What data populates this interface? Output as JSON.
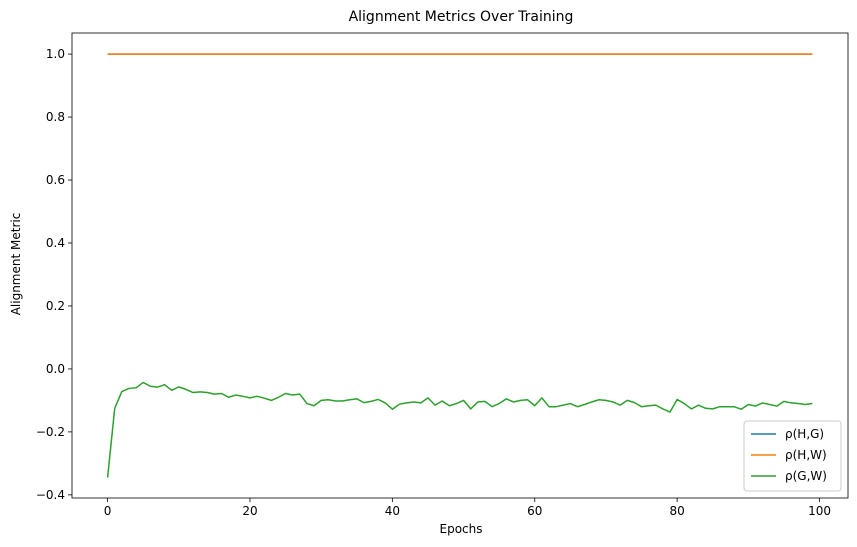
{
  "chart_data": {
    "type": "line",
    "title": "Alignment Metrics Over Training",
    "xlabel": "Epochs",
    "ylabel": "Alignment Metric",
    "xlim": [
      -5,
      104
    ],
    "ylim": [
      -0.41,
      1.067
    ],
    "xticks": [
      0,
      20,
      40,
      60,
      80,
      100
    ],
    "yticks": [
      -0.4,
      -0.2,
      0.0,
      0.2,
      0.4,
      0.6,
      0.8,
      1.0
    ],
    "ytick_labels": [
      "−0.4",
      "−0.2",
      "0.0",
      "0.2",
      "0.4",
      "0.6",
      "0.8",
      "1.0"
    ],
    "grid": false,
    "legend_position": "lower-right",
    "series": [
      {
        "name": "ρ(H,G)",
        "color": "#1f77b4",
        "x": [
          0,
          99
        ],
        "y": [
          1.0,
          1.0
        ]
      },
      {
        "name": "ρ(H,W)",
        "color": "#ff7f0e",
        "x": [
          0,
          99
        ],
        "y": [
          1.0,
          1.0
        ]
      },
      {
        "name": "ρ(G,W)",
        "color": "#2ca02c",
        "x": [
          0,
          1,
          2,
          3,
          4,
          5,
          6,
          7,
          8,
          9,
          10,
          11,
          12,
          13,
          14,
          15,
          16,
          17,
          18,
          19,
          20,
          21,
          22,
          23,
          24,
          25,
          26,
          27,
          28,
          29,
          30,
          31,
          32,
          33,
          34,
          35,
          36,
          37,
          38,
          39,
          40,
          41,
          42,
          43,
          44,
          45,
          46,
          47,
          48,
          49,
          50,
          51,
          52,
          53,
          54,
          55,
          56,
          57,
          58,
          59,
          60,
          61,
          62,
          63,
          64,
          65,
          66,
          67,
          68,
          69,
          70,
          71,
          72,
          73,
          74,
          75,
          76,
          77,
          78,
          79,
          80,
          81,
          82,
          83,
          84,
          85,
          86,
          87,
          88,
          89,
          90,
          91,
          92,
          93,
          94,
          95,
          96,
          97,
          98,
          99
        ],
        "y": [
          -0.345,
          -0.125,
          -0.072,
          -0.062,
          -0.06,
          -0.043,
          -0.055,
          -0.058,
          -0.05,
          -0.068,
          -0.057,
          -0.065,
          -0.075,
          -0.073,
          -0.075,
          -0.08,
          -0.078,
          -0.09,
          -0.083,
          -0.087,
          -0.092,
          -0.087,
          -0.093,
          -0.1,
          -0.09,
          -0.078,
          -0.083,
          -0.08,
          -0.11,
          -0.117,
          -0.1,
          -0.098,
          -0.102,
          -0.102,
          -0.098,
          -0.095,
          -0.107,
          -0.103,
          -0.097,
          -0.108,
          -0.128,
          -0.112,
          -0.108,
          -0.105,
          -0.108,
          -0.092,
          -0.115,
          -0.102,
          -0.117,
          -0.11,
          -0.1,
          -0.127,
          -0.105,
          -0.103,
          -0.12,
          -0.11,
          -0.095,
          -0.105,
          -0.1,
          -0.098,
          -0.117,
          -0.092,
          -0.12,
          -0.12,
          -0.115,
          -0.11,
          -0.12,
          -0.113,
          -0.105,
          -0.098,
          -0.1,
          -0.105,
          -0.115,
          -0.1,
          -0.107,
          -0.12,
          -0.117,
          -0.115,
          -0.127,
          -0.137,
          -0.097,
          -0.11,
          -0.127,
          -0.115,
          -0.125,
          -0.127,
          -0.12,
          -0.12,
          -0.12,
          -0.128,
          -0.113,
          -0.118,
          -0.108,
          -0.113,
          -0.118,
          -0.103,
          -0.108,
          -0.11,
          -0.113,
          -0.11
        ]
      }
    ]
  }
}
